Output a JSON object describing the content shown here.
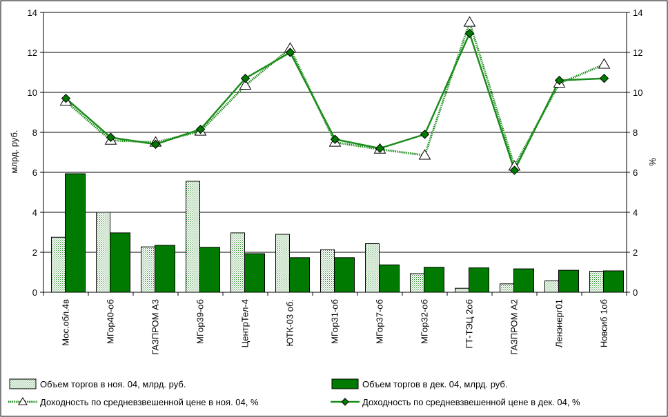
{
  "chart_data": {
    "type": "bar",
    "categories": [
      "Мос.обл.4в",
      "МГор40-об",
      "ГАЗПРОМ А3",
      "МГор39-об",
      "ЦентрТел-4",
      "ЮТК-03 об.",
      "МГор31-об",
      "МГор37-об",
      "МГор32-об",
      "ГТ-ТЭЦ 2об",
      "ГАЗПРОМ А2",
      "Ленэнерг01",
      "Новсиб 1об"
    ],
    "series": [
      {
        "name": "Объем торгов в ноя. 04, млрд. руб.",
        "kind": "bar",
        "axis": "left",
        "values": [
          2.75,
          4.0,
          2.27,
          5.55,
          2.97,
          2.9,
          2.13,
          2.43,
          0.93,
          0.2,
          0.42,
          0.57,
          1.05
        ]
      },
      {
        "name": "Объем торгов в дек. 04, млрд. руб.",
        "kind": "bar",
        "axis": "left",
        "values": [
          5.93,
          2.97,
          2.35,
          2.25,
          1.93,
          1.73,
          1.73,
          1.37,
          1.25,
          1.22,
          1.17,
          1.1,
          1.07
        ]
      },
      {
        "name": "Доходность по средневзвешенной цене в ноя. 04, %",
        "kind": "line",
        "axis": "right",
        "marker": "triangle",
        "values": [
          9.55,
          7.6,
          7.5,
          8.05,
          10.35,
          12.2,
          7.5,
          7.15,
          6.85,
          13.5,
          6.3,
          10.45,
          11.4
        ]
      },
      {
        "name": "Доходность по средневзвешенной цене в дек. 04, %",
        "kind": "line",
        "axis": "right",
        "marker": "diamond",
        "values": [
          9.7,
          7.75,
          7.4,
          8.15,
          10.7,
          12.0,
          7.65,
          7.2,
          7.9,
          12.95,
          6.1,
          10.6,
          10.7
        ]
      }
    ],
    "ylabel": "млрд. руб.",
    "y2label": "%",
    "ylim": [
      0,
      14
    ],
    "y2lim": [
      0,
      14
    ],
    "yticks": [
      "0",
      "2",
      "4",
      "6",
      "8",
      "10",
      "12",
      "14"
    ],
    "grid": true,
    "legend_position": "bottom"
  },
  "colors": {
    "dark_green": "#007a00",
    "line_green": "#1a8c1a",
    "hatch_green": "#2e8b2e",
    "grid": "#000000"
  }
}
